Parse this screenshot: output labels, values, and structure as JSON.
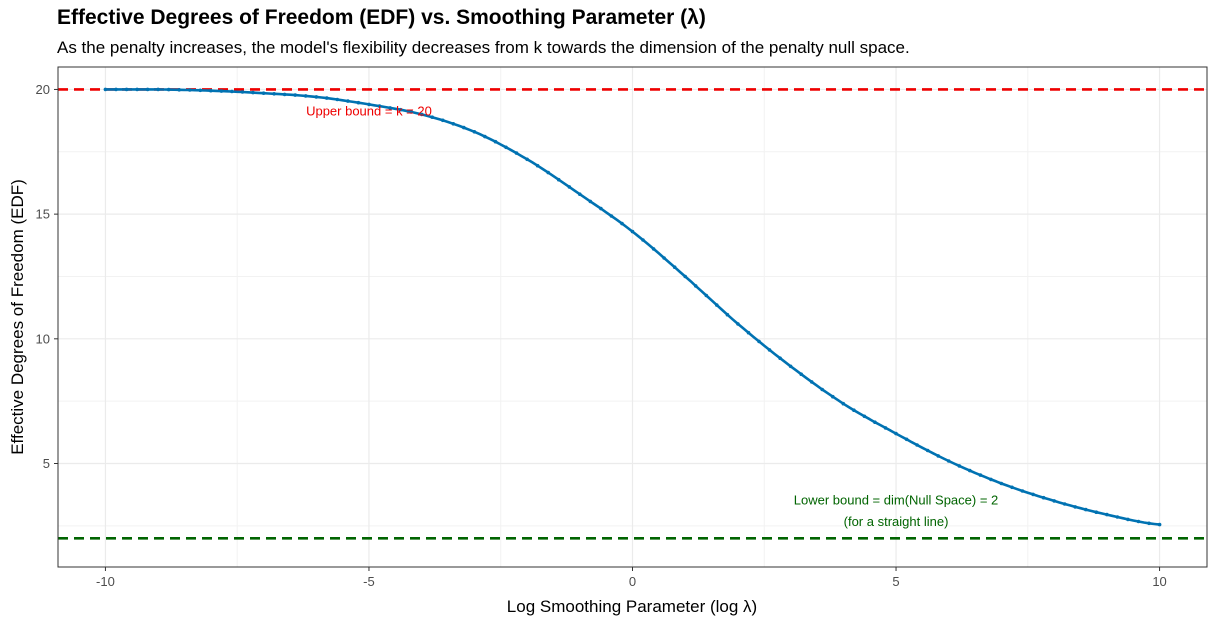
{
  "chart_data": {
    "type": "line",
    "title": "Effective Degrees of Freedom (EDF) vs. Smoothing Parameter (λ)",
    "subtitle": "As the penalty increases, the model's flexibility decreases from k towards the dimension of the penalty null space.",
    "xlabel": "Log Smoothing Parameter (log λ)",
    "ylabel": "Effective Degrees of Freedom (EDF)",
    "xlim": [
      -10.9,
      10.9
    ],
    "ylim": [
      0.85,
      20.9
    ],
    "xticks": [
      -10,
      -5,
      0,
      5,
      10
    ],
    "xtick_labels": [
      "-10",
      "-5",
      "0",
      "5",
      "10"
    ],
    "yticks": [
      5,
      10,
      15,
      20
    ],
    "ytick_labels": [
      "5",
      "10",
      "15",
      "20"
    ],
    "grid": true,
    "line_color": "#0072B2",
    "series": [
      {
        "x": [
          -10,
          -9,
          -8,
          -7,
          -6,
          -5,
          -4,
          -3,
          -2,
          -1,
          0,
          1,
          2,
          3,
          4,
          5,
          6,
          7,
          8,
          9,
          10
        ],
        "values": [
          20.0,
          20.0,
          19.95,
          19.85,
          19.7,
          19.4,
          19.0,
          18.3,
          17.2,
          15.8,
          14.3,
          12.5,
          10.6,
          8.9,
          7.4,
          6.2,
          5.1,
          4.2,
          3.5,
          2.95,
          2.55
        ]
      }
    ],
    "reference_lines": [
      {
        "y": 20,
        "color": "#EE0000",
        "label": "Upper bound = k = 20",
        "label_x": -5.0,
        "label_y": 18.95
      },
      {
        "y": 2,
        "color": "#006400",
        "label": "Lower bound = dim(Null Space) = 2",
        "label2": "(for a straight line)",
        "label_x": 5.0,
        "label_y": 3.35,
        "label2_y": 2.5
      }
    ]
  }
}
